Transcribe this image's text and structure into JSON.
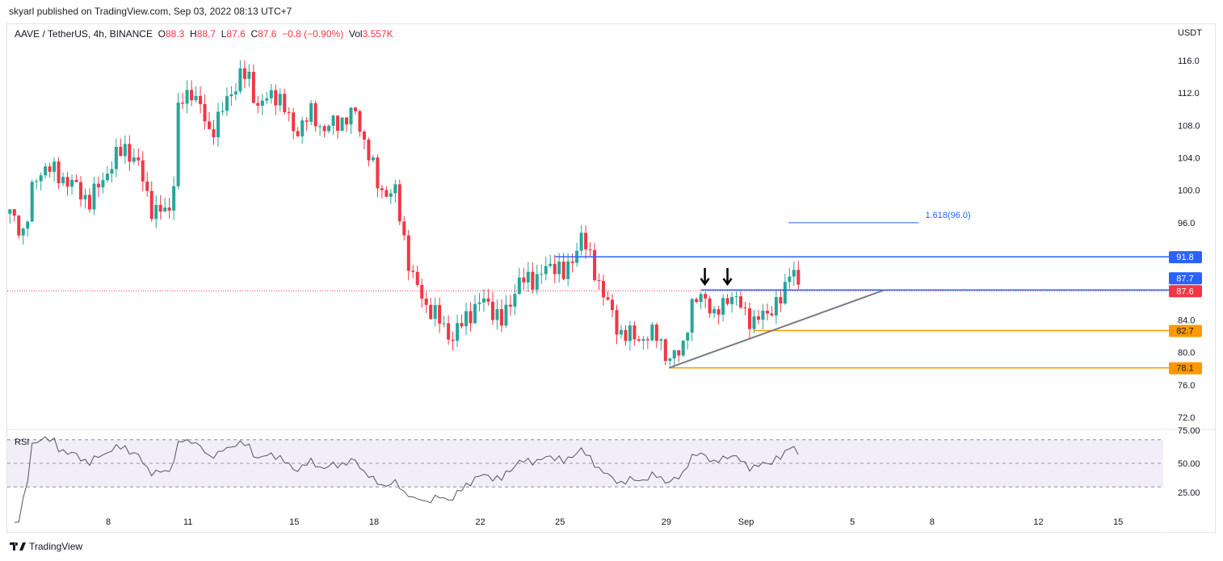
{
  "published": "skyarl published on TradingView.com, Sep 03, 2022 08:13 UTC+7",
  "legend": {
    "symbol": "AAVE / TetherUS, 4h, BINANCE",
    "o_label": "O",
    "o": "88.3",
    "h_label": "H",
    "h": "88.7",
    "l_label": "L",
    "l": "87.6",
    "c_label": "C",
    "c": "87.6",
    "change": "−0.8 (−0.90%)",
    "vol_label": "Vol",
    "vol": "3.557K"
  },
  "currency": "USDT",
  "brand": "TradingView",
  "colors": {
    "up": "#26a69a",
    "down": "#f23645",
    "blue": "#2962ff",
    "orange": "#ff9800",
    "trend": "#787b86",
    "rsi": "#7e57c2"
  },
  "chart_data": {
    "type": "candlestick",
    "title": "AAVE / TetherUS, 4h, BINANCE",
    "ylim": [
      70,
      118
    ],
    "y_ticks": [
      "116.0",
      "112.0",
      "108.0",
      "104.0",
      "100.0",
      "96.0",
      "84.0",
      "80.0",
      "76.0",
      "72.0"
    ],
    "x_ticks": [
      {
        "day": 8,
        "label": "8"
      },
      {
        "day": 11,
        "label": "11"
      },
      {
        "day": 15,
        "label": "15"
      },
      {
        "day": 18,
        "label": "18"
      },
      {
        "day": 22,
        "label": "22"
      },
      {
        "day": 25,
        "label": "25"
      },
      {
        "day": 29,
        "label": "29"
      },
      {
        "day": 32,
        "label": "Sep"
      },
      {
        "day": 36,
        "label": "5"
      },
      {
        "day": 39,
        "label": "8"
      },
      {
        "day": 43,
        "label": "12"
      },
      {
        "day": 46,
        "label": "15"
      }
    ],
    "price_path": [
      [
        4.3,
        97.1
      ],
      [
        4.85,
        94.6
      ],
      [
        5.2,
        101
      ],
      [
        5.6,
        103
      ],
      [
        6.7,
        100.6
      ],
      [
        7.3,
        98.6
      ],
      [
        7.9,
        102
      ],
      [
        8.6,
        105.5
      ],
      [
        9.2,
        102.6
      ],
      [
        9.7,
        97
      ],
      [
        10.4,
        98
      ],
      [
        10.65,
        110.5
      ],
      [
        11.2,
        112.5
      ],
      [
        11.8,
        107
      ],
      [
        12.4,
        110.5
      ],
      [
        13,
        114.5
      ],
      [
        13.3,
        113.5
      ],
      [
        13.6,
        110.5
      ],
      [
        14.4,
        112
      ],
      [
        15,
        107
      ],
      [
        15.6,
        109.5
      ],
      [
        16.1,
        107.5
      ],
      [
        16.7,
        108.5
      ],
      [
        17.3,
        109.5
      ],
      [
        17.8,
        104.5
      ],
      [
        18.2,
        100
      ],
      [
        18.8,
        99.6
      ],
      [
        19.1,
        94.6
      ],
      [
        19.4,
        89.6
      ],
      [
        19.9,
        86.1
      ],
      [
        20.3,
        84.6
      ],
      [
        20.95,
        81.7
      ],
      [
        21.5,
        84.6
      ],
      [
        22.2,
        86.6
      ],
      [
        22.8,
        83.6
      ],
      [
        23.4,
        88.6
      ],
      [
        24,
        89.1
      ],
      [
        24.9,
        91.1
      ],
      [
        25.2,
        89.1
      ],
      [
        25.8,
        94.6
      ],
      [
        26.1,
        91.6
      ],
      [
        26.6,
        87.6
      ],
      [
        27.2,
        82.6
      ],
      [
        27.9,
        81.7
      ],
      [
        28.7,
        82.2
      ],
      [
        29.1,
        78.7
      ],
      [
        29.6,
        80.7
      ],
      [
        29.9,
        85.1
      ],
      [
        30.4,
        87.6
      ],
      [
        30.8,
        84.1
      ],
      [
        31.3,
        87.1
      ],
      [
        31.7,
        86.1
      ],
      [
        32.3,
        83.6
      ],
      [
        32.8,
        85.1
      ],
      [
        33.4,
        86.6
      ],
      [
        33.7,
        91.6
      ],
      [
        34.0,
        87.6
      ]
    ],
    "levels": [
      {
        "price": 91.8,
        "label": "91.8",
        "color": "blue",
        "from_day": 24.8
      },
      {
        "price": 87.7,
        "label": "87.7",
        "color": "blue",
        "from_day": 30.3
      },
      {
        "price": 82.7,
        "label": "82.7",
        "color": "orange",
        "from_day": 32.3
      },
      {
        "price": 78.1,
        "label": "78.1",
        "color": "orange",
        "from_day": 29.1
      }
    ],
    "last_price": {
      "price": 87.6,
      "label": "87.6"
    },
    "fib": {
      "price": 96.0,
      "label": "1.618(96.0)",
      "from_day": 33.6,
      "to_day": 38.5
    },
    "trendline": {
      "from": [
        29.1,
        78.1
      ],
      "to": [
        37.2,
        87.7
      ]
    },
    "arrows_days": [
      30.45,
      31.3
    ],
    "rsi": {
      "label": "RSI",
      "ticks": [
        "75.00",
        "50.00",
        "25.00"
      ],
      "upper": 70,
      "lower": 30,
      "period": 14
    }
  }
}
